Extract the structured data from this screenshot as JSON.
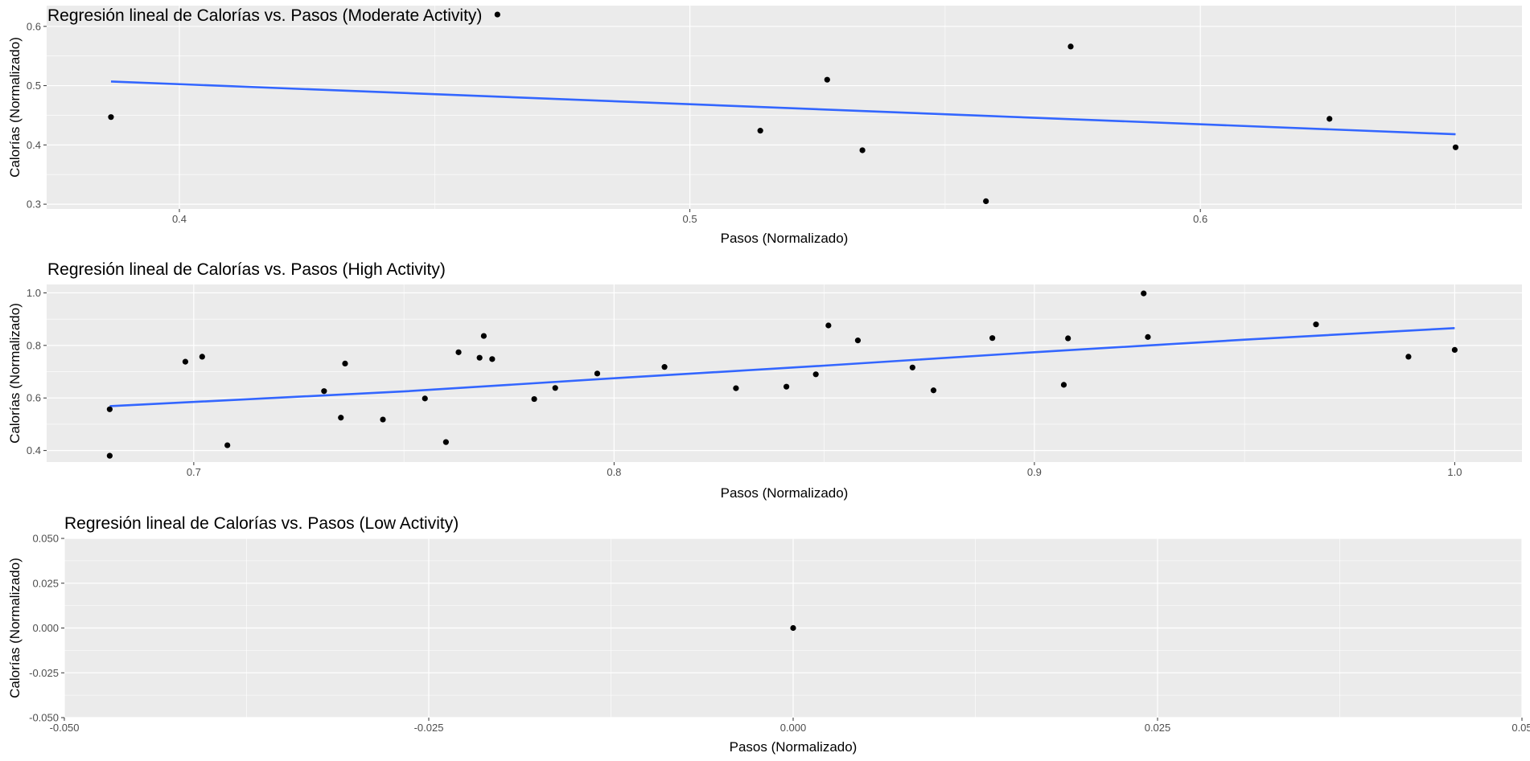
{
  "chart_data": [
    {
      "type": "scatter",
      "title": "Regresión lineal de Calorías vs. Pasos (Moderate Activity)",
      "xlabel": "Pasos (Normalizado)",
      "ylabel": "Calorías (Normalizado)",
      "xlim": [
        0.374,
        0.663
      ],
      "ylim": [
        0.292,
        0.635
      ],
      "xticks": [
        0.4,
        0.5,
        0.6
      ],
      "xtick_labels": [
        "0.4",
        "0.5",
        "0.6"
      ],
      "yticks": [
        0.3,
        0.4,
        0.5,
        0.6
      ],
      "ytick_labels": [
        "0.3",
        "0.4",
        "0.5",
        "0.6"
      ],
      "grid": true,
      "colors": {
        "points": "#000000",
        "fit_line": "#3366ff",
        "panel": "#ebebeb",
        "grid": "#ffffff"
      },
      "series": [
        {
          "kind": "points",
          "x": [
            0.3866,
            0.4623,
            0.5138,
            0.5269,
            0.5338,
            0.558,
            0.5746,
            0.6253,
            0.65
          ],
          "y": [
            0.447,
            0.62,
            0.424,
            0.51,
            0.391,
            0.305,
            0.566,
            0.444,
            0.396
          ]
        },
        {
          "kind": "fit_line",
          "x": [
            0.3866,
            0.65
          ],
          "y": [
            0.507,
            0.418
          ]
        }
      ]
    },
    {
      "type": "scatter",
      "title": "Regresión lineal de Calorías vs. Pasos (High Activity)",
      "xlabel": "Pasos (Normalizado)",
      "ylabel": "Calorías (Normalizado)",
      "xlim": [
        0.665,
        1.016
      ],
      "ylim": [
        0.356,
        1.032
      ],
      "xticks": [
        0.7,
        0.8,
        0.9,
        1.0
      ],
      "xtick_labels": [
        "0.7",
        "0.8",
        "0.9",
        "1.0"
      ],
      "yticks": [
        0.4,
        0.6,
        0.8,
        1.0
      ],
      "ytick_labels": [
        "0.4",
        "0.6",
        "0.8",
        "1.0"
      ],
      "grid": true,
      "colors": {
        "points": "#000000",
        "fit_line": "#3366ff",
        "panel": "#ebebeb",
        "grid": "#ffffff"
      },
      "series": [
        {
          "kind": "points",
          "x": [
            0.68,
            0.68,
            0.698,
            0.702,
            0.708,
            0.731,
            0.735,
            0.736,
            0.745,
            0.755,
            0.76,
            0.763,
            0.768,
            0.769,
            0.771,
            0.781,
            0.786,
            0.796,
            0.812,
            0.829,
            0.841,
            0.848,
            0.851,
            0.858,
            0.871,
            0.876,
            0.89,
            0.907,
            0.908,
            0.926,
            0.927,
            0.967,
            0.989,
            1.0
          ],
          "y": [
            0.38,
            0.557,
            0.738,
            0.757,
            0.42,
            0.626,
            0.525,
            0.731,
            0.518,
            0.598,
            0.432,
            0.774,
            0.753,
            0.836,
            0.748,
            0.596,
            0.638,
            0.693,
            0.718,
            0.637,
            0.643,
            0.69,
            0.876,
            0.819,
            0.716,
            0.629,
            0.828,
            0.65,
            0.827,
            0.998,
            0.832,
            0.88,
            0.757,
            0.783
          ]
        },
        {
          "kind": "fit_line",
          "x": [
            0.68,
            0.75,
            0.8,
            0.85,
            0.9,
            0.95,
            1.0
          ],
          "y": [
            0.569,
            0.625,
            0.675,
            0.723,
            0.774,
            0.822,
            0.866
          ]
        }
      ]
    },
    {
      "type": "scatter",
      "title": "Regresión lineal de Calorías vs. Pasos (Low Activity)",
      "xlabel": "Pasos (Normalizado)",
      "ylabel": "Calorías (Normalizado)",
      "xlim": [
        -0.05,
        0.05
      ],
      "ylim": [
        -0.05,
        0.05
      ],
      "xticks": [
        -0.05,
        -0.025,
        0.0,
        0.025,
        0.05
      ],
      "xtick_labels": [
        "-0.050",
        "-0.025",
        "0.000",
        "0.025",
        "0.05"
      ],
      "yticks": [
        -0.05,
        -0.025,
        0.0,
        0.025,
        0.05
      ],
      "ytick_labels": [
        "-0.050",
        "-0.025",
        "0.000",
        "0.025",
        "0.050"
      ],
      "grid": true,
      "colors": {
        "points": "#000000",
        "fit_line": "#3366ff",
        "panel": "#ebebeb",
        "grid": "#ffffff"
      },
      "series": [
        {
          "kind": "points",
          "x": [
            0.0
          ],
          "y": [
            0.0
          ]
        }
      ]
    }
  ]
}
